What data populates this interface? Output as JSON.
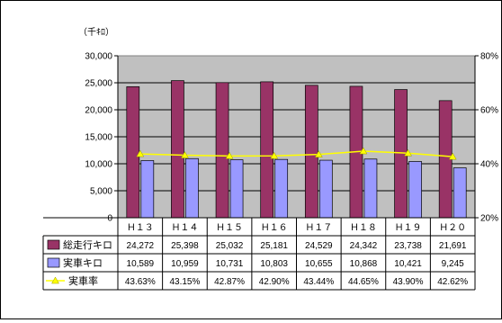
{
  "chart_data": {
    "type": "bar",
    "unit_label": "（千ｷﾛ）",
    "categories": [
      "H13",
      "H14",
      "H15",
      "H16",
      "H17",
      "H18",
      "H19",
      "H20"
    ],
    "category_labels": [
      "Ｈ１３",
      "Ｈ１４",
      "Ｈ１５",
      "Ｈ１６",
      "Ｈ１７",
      "Ｈ１８",
      "Ｈ１９",
      "Ｈ２０"
    ],
    "ylim": [
      0,
      30000
    ],
    "yticks": [
      "0",
      "5,000",
      "10,000",
      "15,000",
      "20,000",
      "25,000",
      "30,000"
    ],
    "y2lim": [
      20,
      80
    ],
    "y2ticks": [
      "20%",
      "40%",
      "60%",
      "80%"
    ],
    "series": [
      {
        "name": "総走行キロ",
        "type": "bar",
        "color": "#993366",
        "values": [
          24272,
          25398,
          25032,
          25181,
          24529,
          24342,
          23738,
          21691
        ],
        "value_labels": [
          "24,272",
          "25,398",
          "25,032",
          "25,181",
          "24,529",
          "24,342",
          "23,738",
          "21,691"
        ]
      },
      {
        "name": "実車キロ",
        "type": "bar",
        "color": "#9999FF",
        "values": [
          10589,
          10959,
          10731,
          10803,
          10655,
          10868,
          10421,
          9245
        ],
        "value_labels": [
          "10,589",
          "10,959",
          "10,731",
          "10,803",
          "10,655",
          "10,868",
          "10,421",
          "9,245"
        ]
      },
      {
        "name": "実車率",
        "type": "line",
        "axis": "right",
        "color": "#FFFF00",
        "values": [
          43.63,
          43.15,
          42.87,
          42.9,
          43.44,
          44.65,
          43.9,
          42.62
        ],
        "value_labels": [
          "43.63%",
          "43.15%",
          "42.87%",
          "42.90%",
          "43.44%",
          "44.65%",
          "43.90%",
          "42.62%"
        ]
      }
    ],
    "plot_background": "#C0C0C0",
    "grid": true
  }
}
